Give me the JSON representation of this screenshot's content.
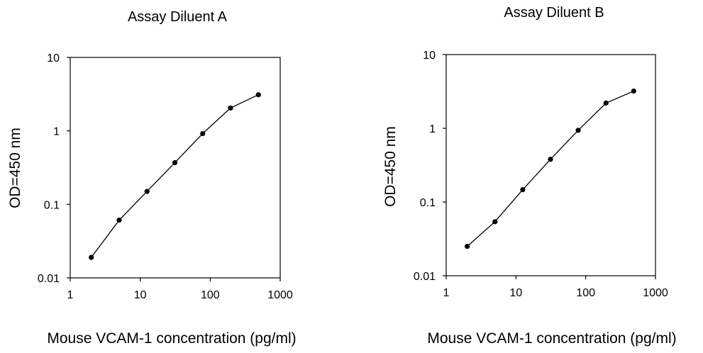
{
  "chart_data": [
    {
      "type": "scatter",
      "title": "Assay Diluent A",
      "xlabel": "Mouse VCAM-1 concentration (pg/ml)",
      "ylabel": "OD=450 nm",
      "xscale": "log",
      "yscale": "log",
      "xlim": [
        1,
        1000
      ],
      "ylim": [
        0.01,
        10
      ],
      "xticks": [
        "1",
        "10",
        "100",
        "1000"
      ],
      "yticks": [
        "0.01",
        "0.1",
        "1",
        "10"
      ],
      "grid": false,
      "connected": true,
      "x": [
        2,
        5,
        12.5,
        31.25,
        78.125,
        195.3,
        488.3
      ],
      "y": [
        0.019,
        0.061,
        0.15,
        0.37,
        0.92,
        2.05,
        3.1
      ]
    },
    {
      "type": "scatter",
      "title": "Assay Diluent B",
      "xlabel": "Mouse VCAM-1 concentration (pg/ml)",
      "ylabel": "OD=450 nm",
      "xscale": "log",
      "yscale": "log",
      "xlim": [
        1,
        1000
      ],
      "ylim": [
        0.01,
        10
      ],
      "xticks": [
        "1",
        "10",
        "100",
        "1000"
      ],
      "yticks": [
        "0.01",
        "0.1",
        "1",
        "10"
      ],
      "grid": false,
      "connected": true,
      "x": [
        2,
        5,
        12.5,
        31.25,
        78.125,
        195.3,
        488.3
      ],
      "y": [
        0.025,
        0.054,
        0.147,
        0.38,
        0.94,
        2.2,
        3.2
      ]
    }
  ]
}
